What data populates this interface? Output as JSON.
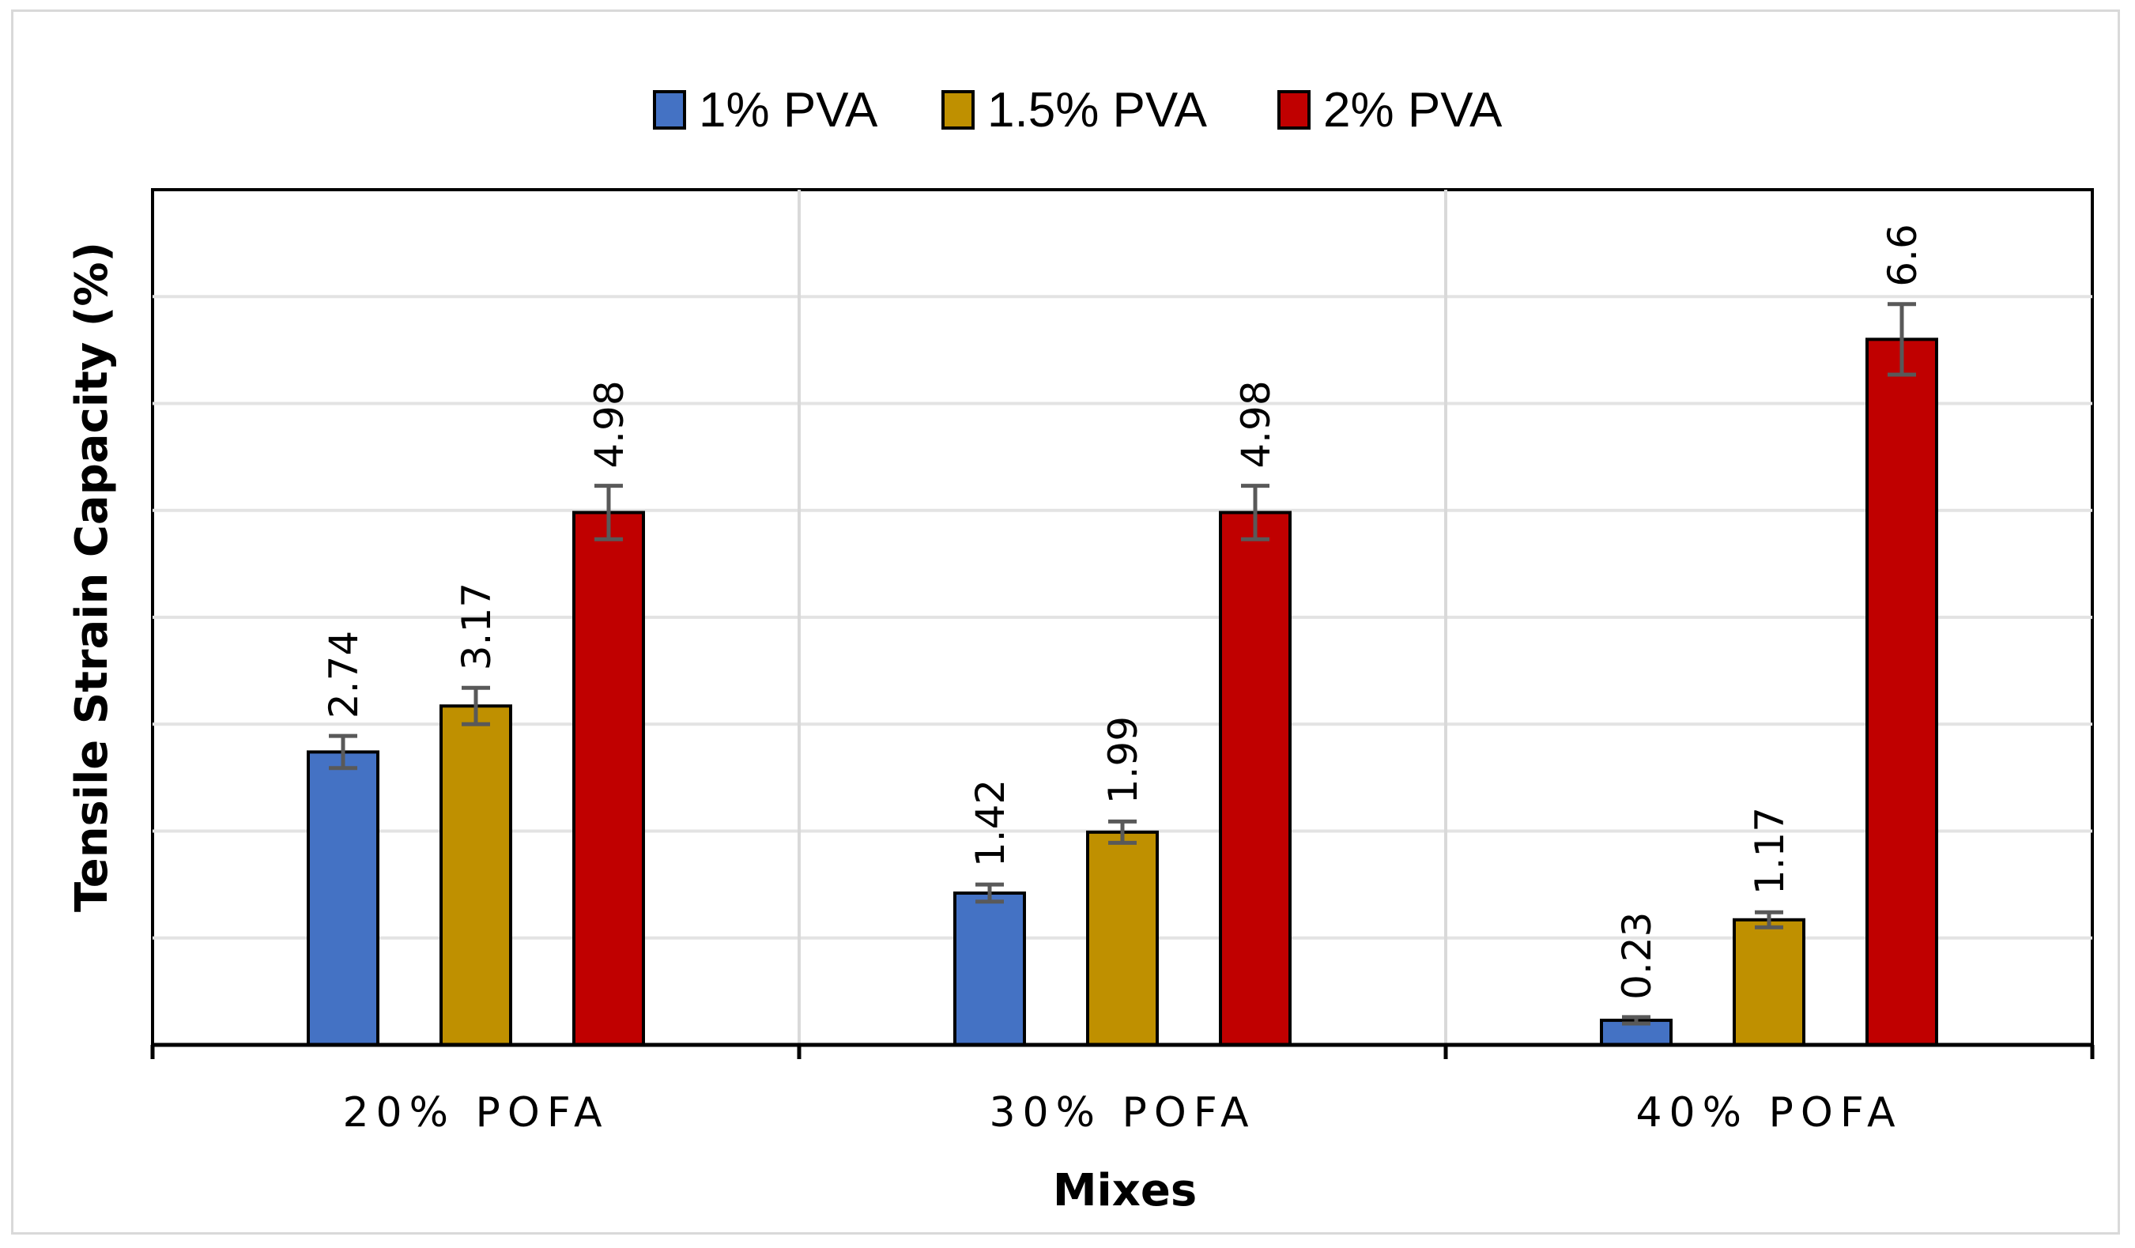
{
  "chart_data": {
    "type": "bar",
    "title": "",
    "xlabel": "Mixes",
    "ylabel": "Tensile Strain Capacity (%)",
    "categories": [
      "20% POFA",
      "30% POFA",
      "40% POFA"
    ],
    "ylim": [
      0,
      8
    ],
    "grid": true,
    "legend_position": "top",
    "series": [
      {
        "name": "1% PVA",
        "color": "#4472c4",
        "values": [
          2.74,
          1.42,
          0.23
        ],
        "labels": [
          "2.74",
          "1.42",
          "0.23"
        ],
        "errors": [
          0.15,
          0.08,
          0.03
        ]
      },
      {
        "name": "1.5% PVA",
        "color": "#bf9000",
        "values": [
          3.17,
          1.99,
          1.17
        ],
        "labels": [
          "3.17",
          "1.99",
          "1.17"
        ],
        "errors": [
          0.17,
          0.1,
          0.07
        ]
      },
      {
        "name": "2% PVA",
        "color": "#c00000",
        "values": [
          4.98,
          4.98,
          6.6
        ],
        "labels": [
          "4.98",
          "4.98",
          "6.6"
        ],
        "errors": [
          0.25,
          0.25,
          0.33
        ]
      }
    ]
  }
}
